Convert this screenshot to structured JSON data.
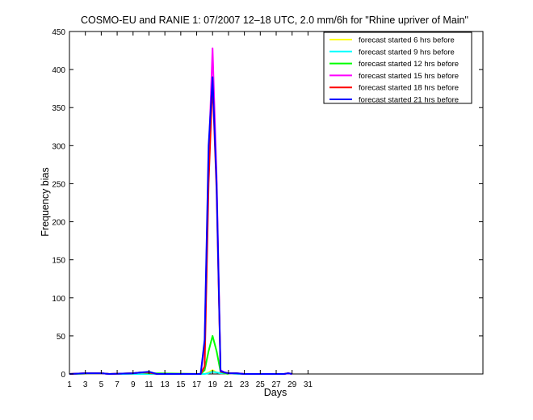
{
  "chart_data": {
    "type": "line",
    "title": "COSMO-EU and RANIE 1: 07/2007 12–18 UTC, 2.0 mm/6h for \"Rhine upriver of Main\"",
    "xlabel": "Days",
    "ylabel": "Frequency bias",
    "xlim": [
      1,
      53
    ],
    "ylim": [
      0,
      450
    ],
    "xticks": [
      1,
      3,
      5,
      7,
      9,
      11,
      13,
      15,
      17,
      19,
      21,
      23,
      25,
      27,
      29,
      31
    ],
    "yticks": [
      0,
      50,
      100,
      150,
      200,
      250,
      300,
      350,
      400,
      450
    ],
    "legend_position": "top-right",
    "grid": false,
    "series": [
      {
        "name": "forecast started 6 hrs before",
        "color": "#ffff00",
        "x": [
          1,
          5,
          6,
          18,
          18.5,
          19,
          19.5,
          20,
          21,
          22,
          24
        ],
        "y": [
          0,
          1,
          0,
          0,
          2,
          5,
          2,
          1,
          1,
          0,
          0
        ]
      },
      {
        "name": "forecast started 9 hrs before",
        "color": "#00ffff",
        "x": [
          1,
          5,
          6,
          18,
          18.5,
          19,
          19.5,
          20,
          21,
          22,
          24
        ],
        "y": [
          0,
          1,
          0,
          0,
          1,
          3,
          2,
          1,
          1,
          0,
          0
        ]
      },
      {
        "name": "forecast started 12 hrs before",
        "color": "#00ff00",
        "x": [
          1,
          5,
          6,
          9,
          10,
          11,
          17.5,
          18,
          18.5,
          19,
          19.5,
          20,
          20.5,
          21
        ],
        "y": [
          0,
          1,
          0,
          1,
          2,
          1,
          0,
          5,
          30,
          50,
          30,
          3,
          1,
          0
        ]
      },
      {
        "name": "forecast started 15 hrs before",
        "color": "#ff00ff",
        "x": [
          1,
          3,
          5,
          6,
          9,
          10,
          11,
          12,
          17.5,
          18,
          18.5,
          19,
          19.5,
          20,
          20.5,
          21,
          22,
          23,
          24,
          28,
          28.5,
          29
        ],
        "y": [
          0,
          1,
          1,
          0,
          1,
          2,
          2,
          0,
          0,
          40,
          280,
          428,
          260,
          5,
          2,
          1,
          1,
          0,
          0,
          0,
          1,
          0
        ]
      },
      {
        "name": "forecast started 18 hrs before",
        "color": "#ff0000",
        "x": [
          1,
          3,
          5,
          6,
          9,
          10,
          11,
          12,
          17.5,
          18,
          18.5,
          19,
          19.5,
          20,
          20.5,
          21,
          22,
          23,
          24,
          28,
          28.5,
          29
        ],
        "y": [
          0,
          1,
          1,
          0,
          1,
          2,
          2,
          0,
          0,
          10,
          250,
          385,
          240,
          3,
          2,
          1,
          1,
          0,
          0,
          0,
          1,
          0
        ]
      },
      {
        "name": "forecast started 21 hrs before",
        "color": "#0000ff",
        "x": [
          1,
          3,
          5,
          6,
          9,
          10,
          11,
          12,
          17.5,
          18,
          18.5,
          19,
          19.5,
          20,
          20.5,
          21,
          22,
          23,
          24,
          28,
          28.5,
          29
        ],
        "y": [
          0,
          1,
          1,
          0,
          1,
          2,
          3,
          0,
          0,
          45,
          300,
          390,
          250,
          4,
          2,
          1,
          1,
          0,
          0,
          0,
          1,
          0
        ]
      }
    ]
  }
}
